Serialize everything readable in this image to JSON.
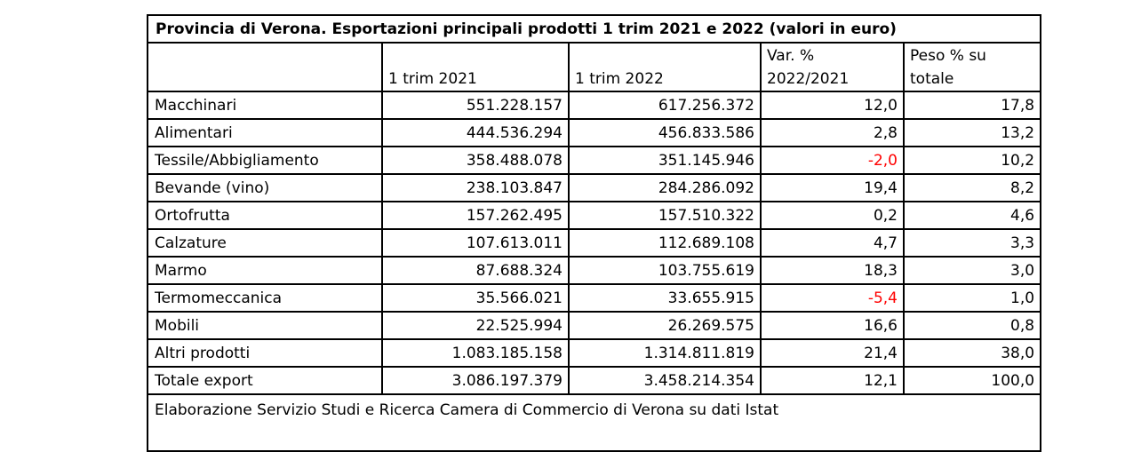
{
  "table": {
    "title": "Provincia di Verona. Esportazioni principali prodotti 1 trim 2021 e 2022  (valori in euro)",
    "headers": {
      "col1": "",
      "col2": "1 trim 2021",
      "col3": "1 trim 2022",
      "col4_line1": "Var. %",
      "col4_line2": "2022/2021",
      "col5_line1": "Peso % su",
      "col5_line2": "totale"
    },
    "rows": [
      {
        "product": "Macchinari",
        "t2021": "551.228.157",
        "t2022": "617.256.372",
        "var": "12,0",
        "peso": "17,8"
      },
      {
        "product": "Alimentari",
        "t2021": "444.536.294",
        "t2022": "456.833.586",
        "var": "2,8",
        "peso": "13,2"
      },
      {
        "product": "Tessile/Abbigliamento",
        "t2021": "358.488.078",
        "t2022": "351.145.946",
        "var": "-2,0",
        "peso": "10,2"
      },
      {
        "product": "Bevande (vino)",
        "t2021": "238.103.847",
        "t2022": "284.286.092",
        "var": "19,4",
        "peso": "8,2"
      },
      {
        "product": "Ortofrutta",
        "t2021": "157.262.495",
        "t2022": "157.510.322",
        "var": "0,2",
        "peso": "4,6"
      },
      {
        "product": "Calzature",
        "t2021": "107.613.011",
        "t2022": "112.689.108",
        "var": "4,7",
        "peso": "3,3"
      },
      {
        "product": "Marmo",
        "t2021": "87.688.324",
        "t2022": "103.755.619",
        "var": "18,3",
        "peso": "3,0"
      },
      {
        "product": "Termomeccanica",
        "t2021": "35.566.021",
        "t2022": "33.655.915",
        "var": "-5,4",
        "peso": "1,0"
      },
      {
        "product": "Mobili",
        "t2021": "22.525.994",
        "t2022": "26.269.575",
        "var": "16,6",
        "peso": "0,8"
      },
      {
        "product": "Altri prodotti",
        "t2021": "1.083.185.158",
        "t2022": "1.314.811.819",
        "var": "21,4",
        "peso": "38,0"
      },
      {
        "product": "Totale export",
        "t2021": "3.086.197.379",
        "t2022": "3.458.214.354",
        "var": "12,1",
        "peso": "100,0"
      }
    ],
    "source": "Elaborazione Servizio Studi e Ricerca Camera di Commercio di Verona su dati Istat",
    "colors": {
      "negative": "#ff0000",
      "text": "#000000",
      "border": "#000000"
    }
  }
}
